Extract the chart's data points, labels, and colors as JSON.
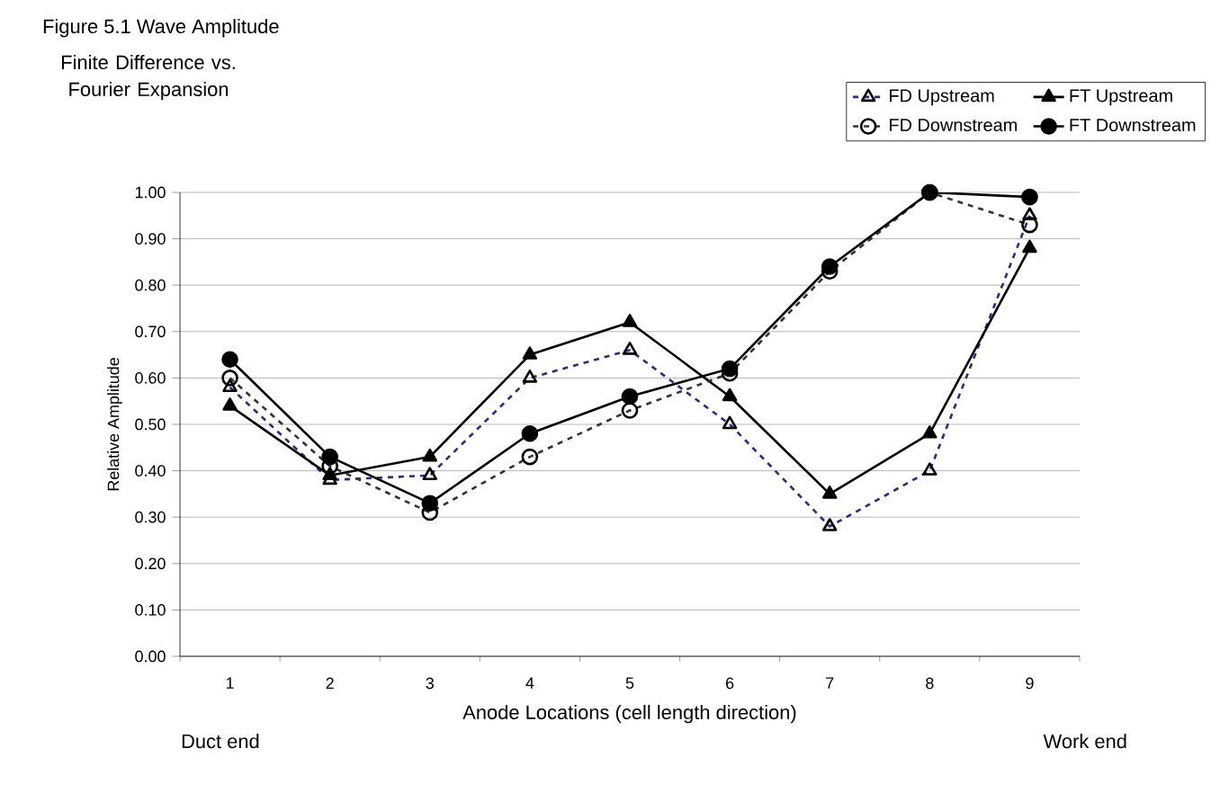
{
  "chart_data": {
    "type": "line",
    "title": "Figure 5.1  Wave Amplitude",
    "subtitle": "Finite Difference vs. Fourier Expansion",
    "xlabel": "Anode Locations (cell length direction)",
    "ylabel": "Relative Amplitude",
    "annotations": [
      "Duct end",
      "Work end"
    ],
    "categories": [
      "1",
      "2",
      "3",
      "4",
      "5",
      "6",
      "7",
      "8",
      "9"
    ],
    "ylim": [
      0,
      1
    ],
    "yticks": [
      {
        "value": 0,
        "label": "0.00"
      },
      {
        "value": 0.1,
        "label": "0.10"
      },
      {
        "value": 0.2,
        "label": "0.20"
      },
      {
        "value": 0.3,
        "label": "0.30"
      },
      {
        "value": 0.4,
        "label": "0.40"
      },
      {
        "value": 0.5,
        "label": "0.50"
      },
      {
        "value": 0.6,
        "label": "0.60"
      },
      {
        "value": 0.7,
        "label": "0.70"
      },
      {
        "value": 0.8,
        "label": "0.80"
      },
      {
        "value": 0.9,
        "label": "0.90"
      },
      {
        "value": 1,
        "label": "1.00"
      }
    ],
    "grid": "y",
    "legend": "top right",
    "series": [
      {
        "name": "FD Upstream",
        "color": "#2b2b80",
        "marker": "triangle",
        "line_style": "dashed",
        "values": [
          0.58,
          0.38,
          0.39,
          0.6,
          0.66,
          0.5,
          0.28,
          0.4,
          0.95
        ]
      },
      {
        "name": "FT Upstream",
        "color": "#000000",
        "marker": "triangle",
        "line_style": "solid",
        "values": [
          0.54,
          0.39,
          0.43,
          0.65,
          0.72,
          0.56,
          0.35,
          0.48,
          0.88
        ]
      },
      {
        "name": "FD Downstream",
        "color": "#333333",
        "marker": "circle",
        "line_style": "dashed",
        "values": [
          0.6,
          0.41,
          0.31,
          0.43,
          0.53,
          0.61,
          0.83,
          1.0,
          0.93
        ]
      },
      {
        "name": "FT Downstream",
        "color": "#000000",
        "marker": "circle",
        "line_style": "solid",
        "values": [
          0.64,
          0.43,
          0.33,
          0.48,
          0.56,
          0.62,
          0.84,
          1.0,
          0.99
        ]
      }
    ]
  }
}
